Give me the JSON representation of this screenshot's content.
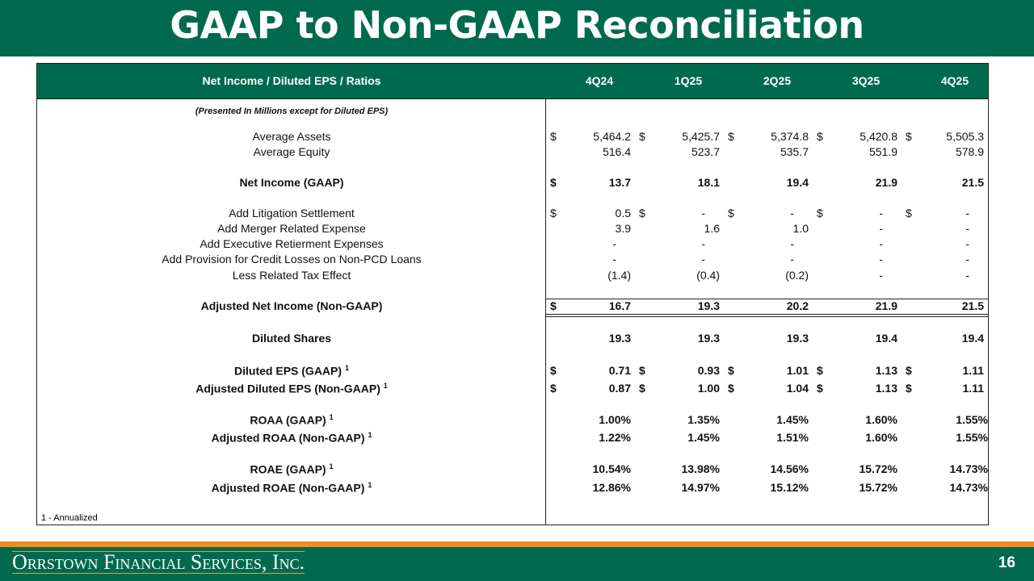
{
  "title": "GAAP to Non-GAAP Reconciliation",
  "header": {
    "label": "Net Income / Diluted EPS / Ratios",
    "periods": [
      "4Q24",
      "1Q25",
      "2Q25",
      "3Q25",
      "4Q25"
    ]
  },
  "subtitle": "(Presented In Millions except for Diluted EPS)",
  "rows": [
    {
      "label": "Average Assets",
      "bold": false,
      "dollar": [
        true,
        true,
        true,
        true,
        true
      ],
      "values": [
        "5,464.2",
        "5,425.7",
        "5,374.8",
        "5,420.8",
        "5,505.3"
      ]
    },
    {
      "label": "Average Equity",
      "bold": false,
      "dollar": [
        false,
        false,
        false,
        false,
        false
      ],
      "values": [
        "516.4",
        "523.7",
        "535.7",
        "551.9",
        "578.9"
      ]
    },
    {
      "label": "Net Income (GAAP)",
      "bold": true,
      "dollar": [
        true,
        false,
        false,
        false,
        false
      ],
      "values": [
        "13.7",
        "18.1",
        "19.4",
        "21.9",
        "21.5"
      ]
    },
    {
      "label": "Add Litigation Settlement",
      "bold": false,
      "dollar": [
        true,
        true,
        true,
        true,
        true
      ],
      "values": [
        "0.5",
        "-",
        "-",
        "-",
        "-"
      ]
    },
    {
      "label": "Add Merger Related Expense",
      "bold": false,
      "dollar": [
        false,
        false,
        false,
        false,
        false
      ],
      "values": [
        "3.9",
        "1.6",
        "1.0",
        "-",
        "-"
      ]
    },
    {
      "label": "Add Executive Retierment Expenses",
      "bold": false,
      "dollar": [
        false,
        false,
        false,
        false,
        false
      ],
      "values": [
        "-",
        "-",
        "-",
        "-",
        "-"
      ]
    },
    {
      "label": "Add Provision for Credit Losses on Non-PCD Loans",
      "bold": false,
      "dollar": [
        false,
        false,
        false,
        false,
        false
      ],
      "values": [
        "-",
        "-",
        "-",
        "-",
        "-"
      ]
    },
    {
      "label": "Less Related Tax Effect",
      "bold": false,
      "dollar": [
        false,
        false,
        false,
        false,
        false
      ],
      "values": [
        "(1.4)",
        "(0.4)",
        "(0.2)",
        "-",
        "-"
      ]
    },
    {
      "label": "Adjusted Net Income (Non-GAAP)",
      "bold": true,
      "dollar": [
        true,
        false,
        false,
        false,
        false
      ],
      "values": [
        "16.7",
        "19.3",
        "20.2",
        "21.9",
        "21.5"
      ]
    },
    {
      "label": "Diluted Shares",
      "bold": true,
      "dollar": [
        false,
        false,
        false,
        false,
        false
      ],
      "values": [
        "19.3",
        "19.3",
        "19.3",
        "19.4",
        "19.4"
      ]
    },
    {
      "label": "Diluted EPS (GAAP)",
      "note": "1",
      "bold": true,
      "dollar": [
        true,
        true,
        true,
        true,
        true
      ],
      "values": [
        "0.71",
        "0.93",
        "1.01",
        "1.13",
        "1.11"
      ]
    },
    {
      "label": "Adjusted Diluted EPS (Non-GAAP)",
      "note": "1",
      "bold": true,
      "dollar": [
        true,
        true,
        true,
        true,
        true
      ],
      "values": [
        "0.87",
        "1.00",
        "1.04",
        "1.13",
        "1.11"
      ]
    },
    {
      "label": "ROAA (GAAP)",
      "note": "1",
      "bold": true,
      "dollar": [
        false,
        false,
        false,
        false,
        false
      ],
      "values": [
        "1.00%",
        "1.35%",
        "1.45%",
        "1.60%",
        "1.55%"
      ]
    },
    {
      "label": "Adjusted ROAA (Non-GAAP)",
      "note": "1",
      "bold": true,
      "dollar": [
        false,
        false,
        false,
        false,
        false
      ],
      "values": [
        "1.22%",
        "1.45%",
        "1.51%",
        "1.60%",
        "1.55%"
      ]
    },
    {
      "label": "ROAE (GAAP)",
      "note": "1",
      "bold": true,
      "dollar": [
        false,
        false,
        false,
        false,
        false
      ],
      "values": [
        "10.54%",
        "13.98%",
        "14.56%",
        "15.72%",
        "14.73%"
      ]
    },
    {
      "label": "Adjusted ROAE (Non-GAAP)",
      "note": "1",
      "bold": true,
      "dollar": [
        false,
        false,
        false,
        false,
        false
      ],
      "values": [
        "12.86%",
        "14.97%",
        "15.12%",
        "15.72%",
        "14.73%"
      ]
    }
  ],
  "currency_symbol": "$",
  "footnote": "1 - Annualized",
  "footer": {
    "company": "Orrstown Financial Services, Inc.",
    "page": "16"
  },
  "colors": {
    "green": "#006A4E",
    "orange": "#F28C1E"
  }
}
